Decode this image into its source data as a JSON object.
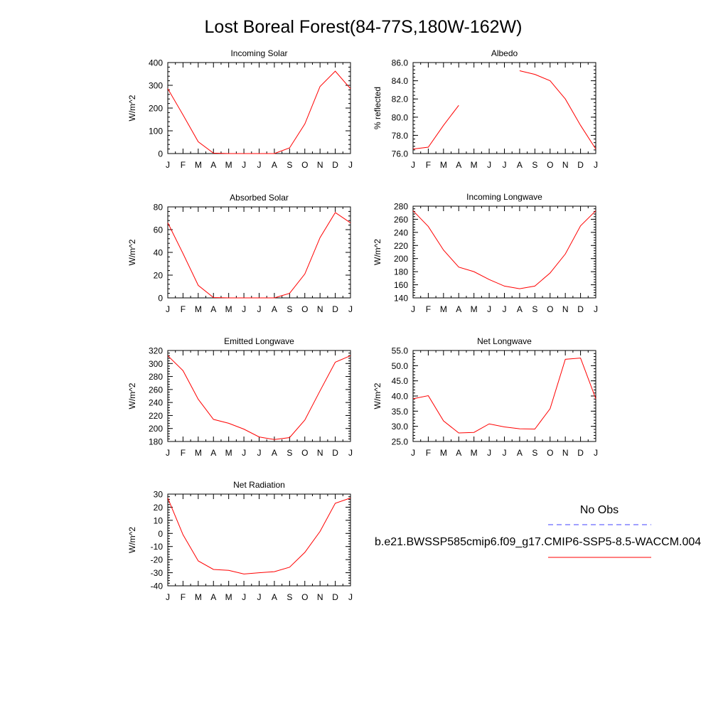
{
  "figure": {
    "title": "Lost Boreal Forest(84-77S,180W-162W)"
  },
  "legend": {
    "obs_label": "No Obs",
    "obs_color": "#4040ff",
    "model_label": "b.e21.BWSSP585cmip6.f09_g17.CMIP6-SSP5-8.5-WACCM.004",
    "model_color": "#ff0000"
  },
  "chart_data": [
    {
      "type": "line",
      "title": "Incoming Solar",
      "ylabel": "W/m^2",
      "categories": [
        "J",
        "F",
        "M",
        "A",
        "M",
        "J",
        "J",
        "A",
        "S",
        "O",
        "N",
        "D",
        "J"
      ],
      "ylim": [
        0,
        400
      ],
      "yticks": [
        0,
        100,
        200,
        300,
        400
      ],
      "ytick_labels": [
        "0",
        "100",
        "200",
        "300",
        "400"
      ],
      "yminor_step": 20,
      "series": [
        {
          "values": [
            285,
            170,
            52,
            2,
            0,
            0,
            0,
            0,
            25,
            130,
            295,
            362,
            285
          ],
          "color": "#ff0000"
        }
      ]
    },
    {
      "type": "line",
      "title": "Albedo",
      "ylabel": "% reflected",
      "categories": [
        "J",
        "F",
        "M",
        "A",
        "M",
        "J",
        "J",
        "A",
        "S",
        "O",
        "N",
        "D",
        "J"
      ],
      "ylim": [
        76,
        86
      ],
      "yticks": [
        76,
        78,
        80,
        82,
        84,
        86
      ],
      "ytick_labels": [
        "76.0",
        "78.0",
        "80.0",
        "82.0",
        "84.0",
        "86.0"
      ],
      "yminor_step": 0.4,
      "series": [
        {
          "values": [
            76.5,
            76.7,
            79.1,
            81.3,
            null,
            null,
            null,
            85.1,
            84.7,
            84.0,
            82.0,
            79.1,
            76.5
          ],
          "color": "#ff0000"
        }
      ]
    },
    {
      "type": "line",
      "title": "Absorbed Solar",
      "ylabel": "W/m^2",
      "categories": [
        "J",
        "F",
        "M",
        "A",
        "M",
        "J",
        "J",
        "A",
        "S",
        "O",
        "N",
        "D",
        "J"
      ],
      "ylim": [
        0,
        80
      ],
      "yticks": [
        0,
        20,
        40,
        60,
        80
      ],
      "ytick_labels": [
        "0",
        "20",
        "40",
        "60",
        "80"
      ],
      "yminor_step": 4,
      "series": [
        {
          "values": [
            66,
            39,
            11,
            0.3,
            0,
            0,
            0,
            0,
            4,
            21,
            53,
            75,
            66
          ],
          "color": "#ff0000"
        }
      ]
    },
    {
      "type": "line",
      "title": "Incoming Longwave",
      "ylabel": "W/m^2",
      "categories": [
        "J",
        "F",
        "M",
        "A",
        "M",
        "J",
        "J",
        "A",
        "S",
        "O",
        "N",
        "D",
        "J"
      ],
      "ylim": [
        140,
        280
      ],
      "yticks": [
        140,
        160,
        180,
        200,
        220,
        240,
        260,
        280
      ],
      "ytick_labels": [
        "140",
        "160",
        "180",
        "200",
        "220",
        "240",
        "260",
        "280"
      ],
      "yminor_step": 4,
      "series": [
        {
          "values": [
            273,
            249,
            213,
            187,
            180,
            168,
            158,
            154,
            158,
            178,
            207,
            250,
            273
          ],
          "color": "#ff0000"
        }
      ]
    },
    {
      "type": "line",
      "title": "Emitted Longwave",
      "ylabel": "W/m^2",
      "categories": [
        "J",
        "F",
        "M",
        "A",
        "M",
        "J",
        "J",
        "A",
        "S",
        "O",
        "N",
        "D",
        "J"
      ],
      "ylim": [
        180,
        320
      ],
      "yticks": [
        180,
        200,
        220,
        240,
        260,
        280,
        300,
        320
      ],
      "ytick_labels": [
        "180",
        "200",
        "220",
        "240",
        "260",
        "280",
        "300",
        "320"
      ],
      "yminor_step": 4,
      "series": [
        {
          "values": [
            312,
            289,
            245,
            214,
            208,
            199,
            187,
            183,
            186,
            213,
            258,
            302,
            312
          ],
          "color": "#ff0000"
        }
      ]
    },
    {
      "type": "line",
      "title": "Net Longwave",
      "ylabel": "W/m^2",
      "categories": [
        "J",
        "F",
        "M",
        "A",
        "M",
        "J",
        "J",
        "A",
        "S",
        "O",
        "N",
        "D",
        "J"
      ],
      "ylim": [
        25,
        55
      ],
      "yticks": [
        25,
        30,
        35,
        40,
        45,
        50,
        55
      ],
      "ytick_labels": [
        "25.0",
        "30.0",
        "35.0",
        "40.0",
        "45.0",
        "50.0",
        "55.0"
      ],
      "yminor_step": 1,
      "series": [
        {
          "values": [
            39.1,
            40.1,
            31.8,
            27.8,
            28.0,
            30.8,
            29.8,
            29.2,
            29.1,
            35.8,
            52.1,
            52.5,
            39.1
          ],
          "color": "#ff0000"
        }
      ]
    },
    {
      "type": "line",
      "title": "Net Radiation",
      "ylabel": "W/m^2",
      "categories": [
        "J",
        "F",
        "M",
        "A",
        "M",
        "J",
        "J",
        "A",
        "S",
        "O",
        "N",
        "D",
        "J"
      ],
      "ylim": [
        -40,
        30
      ],
      "yticks": [
        -40,
        -30,
        -20,
        -10,
        0,
        10,
        20,
        30
      ],
      "ytick_labels": [
        "-40",
        "-30",
        "-20",
        "-10",
        "0",
        "10",
        "20",
        "30"
      ],
      "yminor_step": 2,
      "series": [
        {
          "values": [
            27,
            -1,
            -21,
            -27.5,
            -28.2,
            -31,
            -30,
            -29.2,
            -25.8,
            -14.5,
            1.5,
            23,
            27
          ],
          "color": "#ff0000"
        }
      ]
    }
  ]
}
